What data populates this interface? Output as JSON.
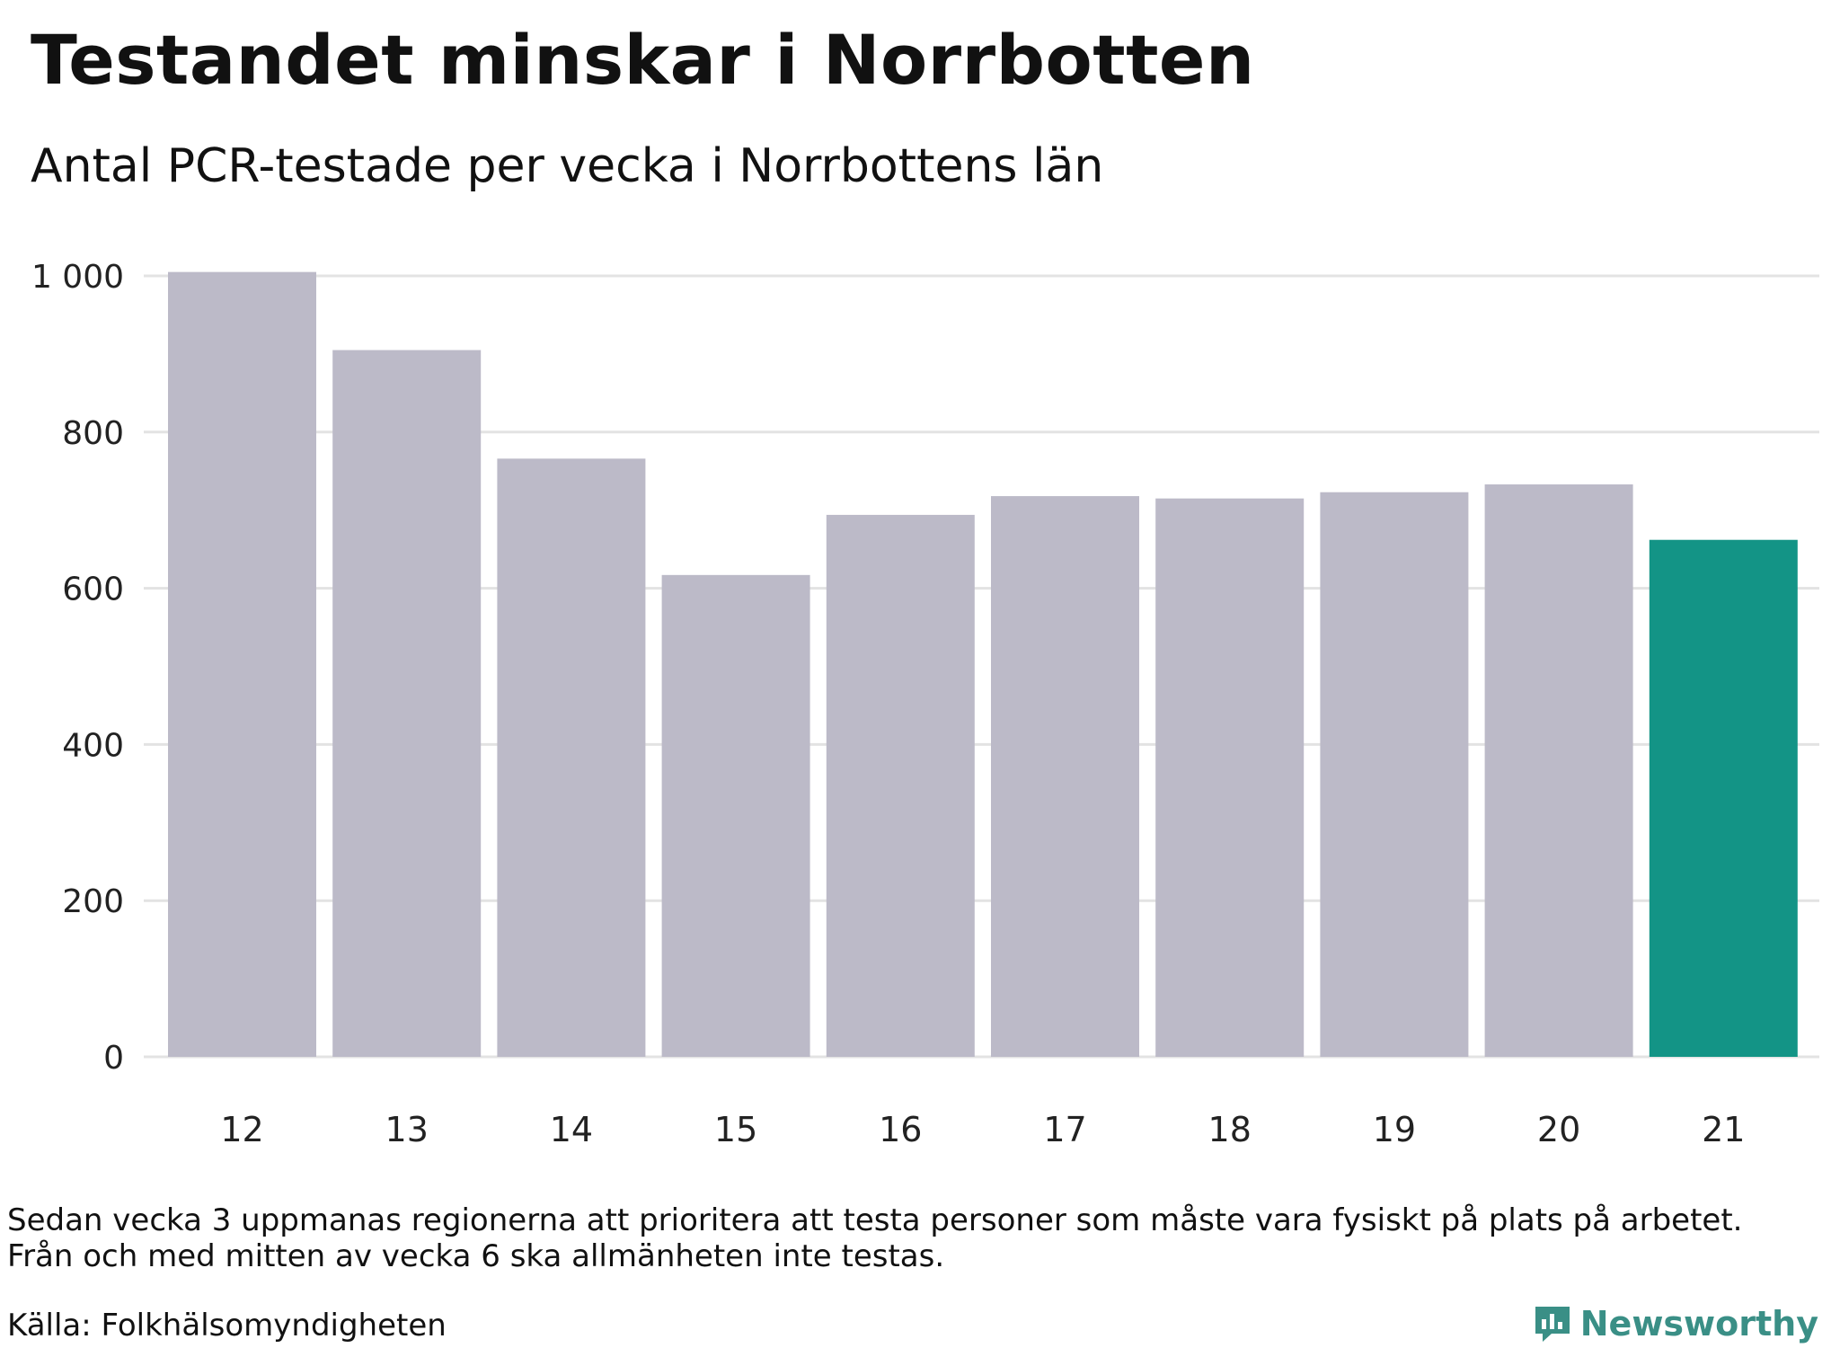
{
  "header": {
    "title": "Testandet minskar i Norrbotten",
    "subtitle": "Antal PCR-testade per vecka i Norrbottens län"
  },
  "chart_data": {
    "type": "bar",
    "title": "Testandet minskar i Norrbotten",
    "subtitle": "Antal PCR-testade per vecka i Norrbottens län",
    "xlabel": "",
    "ylabel": "",
    "categories": [
      "12",
      "13",
      "14",
      "15",
      "16",
      "17",
      "18",
      "19",
      "20",
      "21"
    ],
    "values": [
      1005,
      905,
      766,
      617,
      694,
      718,
      715,
      723,
      733,
      662
    ],
    "ylim": [
      0,
      1000
    ],
    "yticks": [
      0,
      200,
      400,
      600,
      800,
      1000
    ],
    "ytick_labels": [
      "0",
      "200",
      "400",
      "600",
      "800",
      "1 000"
    ],
    "grid": true,
    "colors": {
      "bar": "#bcbac8",
      "highlight": "#139486",
      "grid": "#e3e3e3"
    },
    "highlight_index": 9
  },
  "footer": {
    "note_lines": [
      "Sedan vecka 3 uppmanas regionerna att prioritera att testa personer som måste vara fysiskt på plats på arbetet.",
      "Från och med mitten av vecka 6 ska allmänheten inte testas."
    ],
    "source": "Källa: Folkhälsomyndigheten",
    "brand": "Newsworthy",
    "brand_icon": "bar-chart-speech-bubble-icon",
    "brand_color": "#3a8f86"
  }
}
